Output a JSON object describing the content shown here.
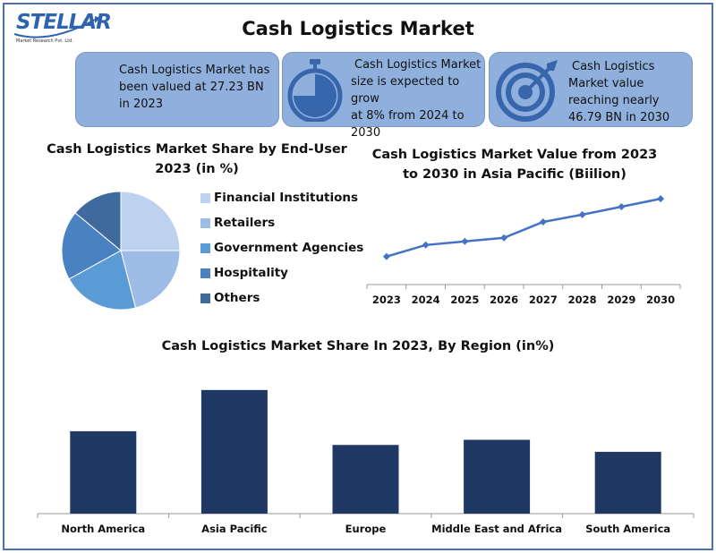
{
  "header": {
    "logo_text": "STELLAR",
    "logo_subtitle": "Market Research Pvt. Ltd.",
    "title": "Cash Logistics Market"
  },
  "cards": [
    {
      "text_lines": [
        "Cash Logistics Market has",
        "been valued at 27.23 BN",
        "in 2023"
      ],
      "icon": "none"
    },
    {
      "text_lines": [
        "Cash Logistics Market",
        "size is expected to grow",
        "at 8% from 2024 to",
        "2030"
      ],
      "icon": "stopwatch-icon"
    },
    {
      "text_lines": [
        "Cash Logistics",
        "Market value",
        "reaching nearly",
        "46.79 BN in 2030"
      ],
      "icon": "target-icon"
    }
  ],
  "colors": {
    "card_bg": "#8fb0dc",
    "icon_fill": "#3866ad",
    "bar": "#1f3864",
    "line": "#4472c4"
  },
  "chart_data": [
    {
      "type": "pie",
      "title_lines": [
        "Cash Logistics Market Share by End-User",
        "2023 (in %)"
      ],
      "categories": [
        "Financial Institutions",
        "Retailers",
        "Government Agencies",
        "Hospitality",
        "Others"
      ],
      "values": [
        25,
        21,
        21,
        19,
        14
      ],
      "colors": [
        "#bdd2ee",
        "#9dbce6",
        "#5b9bd5",
        "#4a81c0",
        "#3e6a9e"
      ],
      "legend_position": "right"
    },
    {
      "type": "line",
      "title_lines": [
        "Cash Logistics Market Value from 2023",
        "to 2030 in Asia Pacific (Biilion)"
      ],
      "x": [
        "2023",
        "2024",
        "2025",
        "2026",
        "2027",
        "2028",
        "2029",
        "2030"
      ],
      "values": [
        8.0,
        9.6,
        10.1,
        10.6,
        12.8,
        13.8,
        14.9,
        16.0
      ],
      "ylim": [
        4.5,
        17.5
      ],
      "grid": false,
      "marker": "diamond"
    },
    {
      "type": "bar",
      "title": "Cash Logistics Market Share In 2023, By Region (in%)",
      "categories": [
        "North America",
        "Asia Pacific",
        "Europe",
        "Middle East and Africa",
        "South America"
      ],
      "values": [
        24,
        36,
        20,
        21.5,
        18
      ],
      "ylim": [
        0,
        37
      ],
      "grid": false
    }
  ]
}
